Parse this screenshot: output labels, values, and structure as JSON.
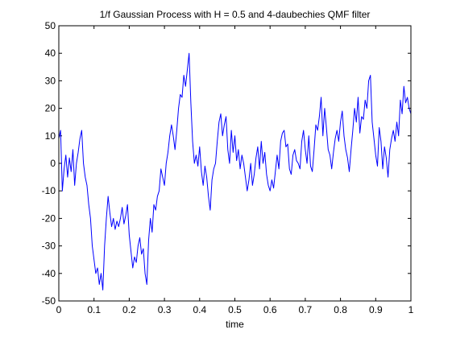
{
  "chart_data": {
    "type": "line",
    "title": "1/f Gaussian Process with H = 0.5 and 4-daubechies QMF filter",
    "xlabel": "time",
    "ylabel": "",
    "xlim": [
      0,
      1
    ],
    "ylim": [
      -50,
      50
    ],
    "xticks": [
      0,
      0.1,
      0.2,
      0.3,
      0.4,
      0.5,
      0.6,
      0.7,
      0.8,
      0.9,
      1
    ],
    "xtick_labels": [
      "0",
      "0.1",
      "0.2",
      "0.3",
      "0.4",
      "0.5",
      "0.6",
      "0.7",
      "0.8",
      "0.9",
      "1"
    ],
    "yticks": [
      -50,
      -40,
      -30,
      -20,
      -10,
      0,
      10,
      20,
      30,
      40,
      50
    ],
    "ytick_labels": [
      "-50",
      "-40",
      "-30",
      "-20",
      "-10",
      "0",
      "10",
      "20",
      "30",
      "40",
      "50"
    ],
    "grid": false,
    "legend": "none",
    "series_color": "#0000ff",
    "series": [
      {
        "x": [
          0,
          0.005,
          0.01,
          0.015,
          0.02,
          0.025,
          0.03,
          0.035,
          0.04,
          0.045,
          0.05,
          0.055,
          0.06,
          0.065,
          0.07,
          0.075,
          0.08,
          0.085,
          0.09,
          0.095,
          0.1,
          0.105,
          0.11,
          0.115,
          0.12,
          0.125,
          0.13,
          0.135,
          0.14,
          0.145,
          0.15,
          0.155,
          0.16,
          0.165,
          0.17,
          0.175,
          0.18,
          0.185,
          0.19,
          0.195,
          0.2,
          0.205,
          0.21,
          0.215,
          0.22,
          0.225,
          0.23,
          0.235,
          0.24,
          0.245,
          0.25,
          0.255,
          0.26,
          0.265,
          0.27,
          0.275,
          0.28,
          0.285,
          0.29,
          0.295,
          0.3,
          0.305,
          0.31,
          0.315,
          0.32,
          0.325,
          0.33,
          0.335,
          0.34,
          0.345,
          0.35,
          0.355,
          0.36,
          0.365,
          0.37,
          0.375,
          0.38,
          0.385,
          0.39,
          0.395,
          0.4,
          0.405,
          0.41,
          0.415,
          0.42,
          0.425,
          0.43,
          0.435,
          0.44,
          0.445,
          0.45,
          0.455,
          0.46,
          0.465,
          0.47,
          0.475,
          0.48,
          0.485,
          0.49,
          0.495,
          0.5,
          0.505,
          0.51,
          0.515,
          0.52,
          0.525,
          0.53,
          0.535,
          0.54,
          0.545,
          0.55,
          0.555,
          0.56,
          0.565,
          0.57,
          0.575,
          0.58,
          0.585,
          0.59,
          0.595,
          0.6,
          0.605,
          0.61,
          0.615,
          0.62,
          0.625,
          0.63,
          0.635,
          0.64,
          0.645,
          0.65,
          0.655,
          0.66,
          0.665,
          0.67,
          0.675,
          0.68,
          0.685,
          0.69,
          0.695,
          0.7,
          0.705,
          0.71,
          0.715,
          0.72,
          0.725,
          0.73,
          0.735,
          0.74,
          0.745,
          0.75,
          0.755,
          0.76,
          0.765,
          0.77,
          0.775,
          0.78,
          0.785,
          0.79,
          0.795,
          0.8,
          0.805,
          0.81,
          0.815,
          0.82,
          0.825,
          0.83,
          0.835,
          0.84,
          0.845,
          0.85,
          0.855,
          0.86,
          0.865,
          0.87,
          0.875,
          0.88,
          0.885,
          0.89,
          0.895,
          0.9,
          0.905,
          0.91,
          0.915,
          0.92,
          0.925,
          0.93,
          0.935,
          0.94,
          0.945,
          0.95,
          0.955,
          0.96,
          0.965,
          0.97,
          0.975,
          0.98,
          0.985,
          0.99,
          0.995,
          1
        ],
        "y": [
          9,
          12,
          -10,
          -2,
          3,
          -5,
          2,
          -3,
          5,
          -8,
          0,
          4,
          9,
          12,
          0,
          -5,
          -8,
          -15,
          -20,
          -30,
          -35,
          -40,
          -38,
          -44,
          -40,
          -46,
          -30,
          -20,
          -12,
          -18,
          -23,
          -20,
          -24,
          -21,
          -23,
          -20,
          -16,
          -22,
          -19,
          -15,
          -26,
          -32,
          -38,
          -34,
          -36,
          -30,
          -27,
          -33,
          -31,
          -40,
          -44,
          -28,
          -20,
          -25,
          -15,
          -17,
          -12,
          -10,
          -2,
          -5,
          -8,
          0,
          4,
          10,
          14,
          10,
          5,
          12,
          20,
          25,
          24,
          32,
          28,
          34,
          40,
          22,
          8,
          0,
          3,
          -1,
          6,
          -3,
          -8,
          -1,
          -5,
          -12,
          -17,
          -6,
          -2,
          0,
          8,
          15,
          18,
          10,
          14,
          17,
          5,
          0,
          12,
          4,
          10,
          1,
          5,
          -2,
          3,
          0,
          -5,
          -10,
          -6,
          0,
          -8,
          -4,
          2,
          6,
          -2,
          8,
          0,
          4,
          -4,
          -8,
          -10,
          -6,
          -9,
          -3,
          3,
          -2,
          8,
          11,
          12,
          6,
          7,
          -2,
          -4,
          3,
          5,
          1,
          0,
          -2,
          8,
          12,
          5,
          0,
          10,
          -1,
          -3,
          5,
          14,
          12,
          17,
          24,
          10,
          20,
          13,
          5,
          3,
          -2,
          4,
          9,
          12,
          8,
          15,
          19,
          10,
          5,
          2,
          -3,
          5,
          12,
          20,
          15,
          24,
          11,
          17,
          16,
          23,
          20,
          30,
          32,
          15,
          9,
          3,
          -1,
          13,
          8,
          -2,
          6,
          2,
          -5,
          5,
          9,
          12,
          8,
          15,
          10,
          23,
          18,
          28,
          22,
          24,
          20,
          18
        ]
      }
    ]
  }
}
